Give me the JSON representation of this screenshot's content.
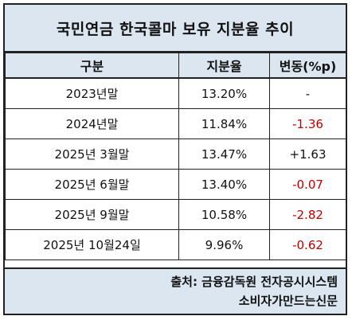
{
  "title": "국민연금 한국콜마 보유 지분율 추이",
  "headers": [
    "구분",
    "지분율",
    "변동(%p)"
  ],
  "rows": [
    {
      "period": "2023년말",
      "share": "13.20%",
      "change": "-",
      "negative": false
    },
    {
      "period": "2024년말",
      "share": "11.84%",
      "change": "-1.36",
      "negative": true
    },
    {
      "period": "2025년 3월말",
      "share": "13.47%",
      "change": "+1.63",
      "negative": false
    },
    {
      "period": "2025년 6월말",
      "share": "13.40%",
      "change": "-0.07",
      "negative": true
    },
    {
      "period": "2025년 9월말",
      "share": "10.58%",
      "change": "-2.82",
      "negative": true
    },
    {
      "period": "2025년 10월24일",
      "share": "9.96%",
      "change": "-0.62",
      "negative": true
    }
  ],
  "footer": {
    "source": "출처: 금융감독원 전자공시시스템",
    "publisher": "소비자가만드는신문"
  },
  "colors": {
    "header_bg": "#dce6f1",
    "negative": "#c00000",
    "border": "#222222"
  }
}
